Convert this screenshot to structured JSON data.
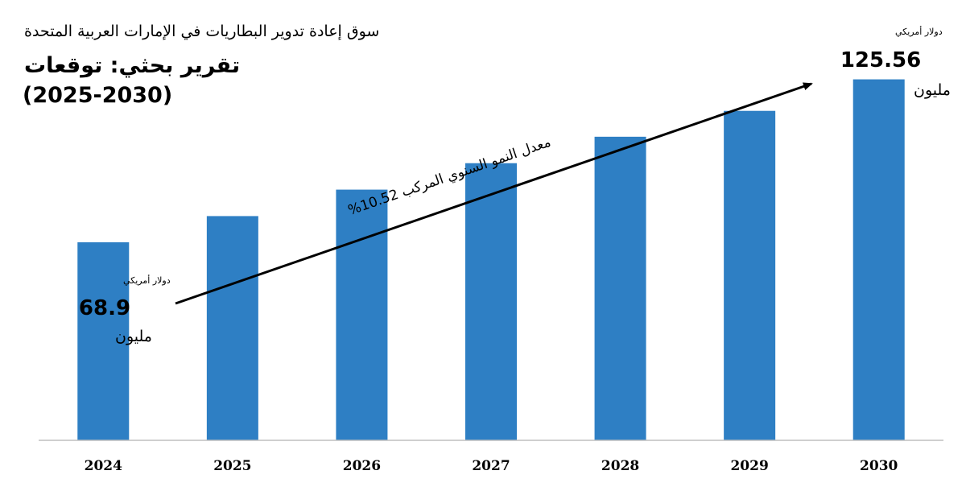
{
  "header": {
    "market_title": "سوق إعادة تدوير البطاريات في الإمارات العربية المتحدة",
    "report_subtitle": "تقرير بحثي: توقعات",
    "period": "(2025-2030)"
  },
  "colors": {
    "bar": "#2e7fc4",
    "axis": "#bfbfbf",
    "arrow": "#000000"
  },
  "chart_data": {
    "type": "bar",
    "categories": [
      "2024",
      "2025",
      "2026",
      "2027",
      "2028",
      "2029",
      "2030"
    ],
    "values": [
      68.9,
      78.0,
      87.2,
      96.4,
      105.6,
      114.6,
      125.56
    ],
    "ylim": [
      0,
      140
    ],
    "grid": false,
    "annotations": {
      "start": {
        "value": "68.9",
        "unit": "دولار أمريكي",
        "suffix": "مليون"
      },
      "end": {
        "value": "125.56",
        "unit": "دولار أمريكي",
        "suffix": "مليون"
      },
      "cagr_label": "معدل النمو السنوي المركب 10.52%"
    }
  }
}
